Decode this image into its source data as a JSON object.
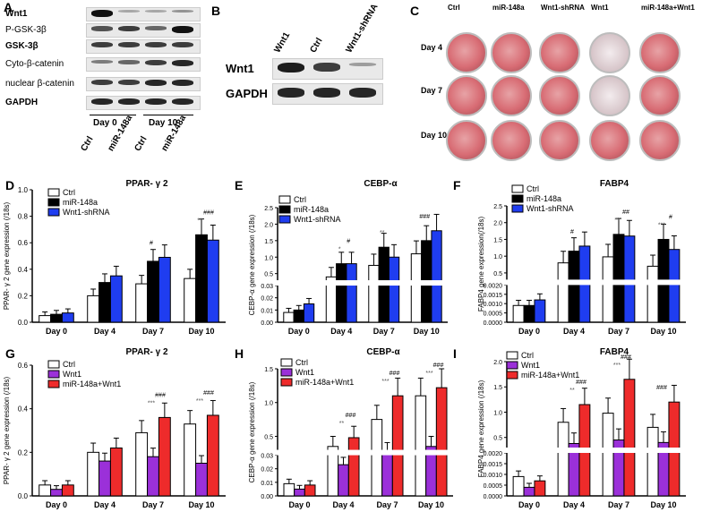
{
  "panels": {
    "A": {
      "letter": "A",
      "rows": [
        "Wnt1",
        "P-GSK-3β",
        "GSK-3β",
        "Cyto-β-catenin",
        "nuclear β-catenin",
        "GAPDH"
      ],
      "days": [
        "Day 0",
        "Day 10"
      ],
      "lanes": [
        "Ctrl",
        "miR-148a",
        "Ctrl",
        "miR-148a"
      ]
    },
    "B": {
      "letter": "B",
      "rows": [
        "Wnt1",
        "GAPDH"
      ],
      "lanes": [
        "Wnt1",
        "Ctrl",
        "Wnt1-shRNA"
      ]
    },
    "C": {
      "letter": "C",
      "columns": [
        "Ctrl",
        "miR-148a",
        "Wnt1-shRNA",
        "Wnt1",
        "miR-148a+Wnt1"
      ],
      "rows": [
        "Day 4",
        "Day 7",
        "Day 10"
      ]
    }
  },
  "colors": {
    "ctrl": "#ffffff",
    "mir": "#000000",
    "shrna": "#1f3df0",
    "wnt1": "#9b30d9",
    "combo": "#ee2b2b"
  },
  "chart_data": [
    {
      "panel": "D",
      "type": "bar",
      "title": "PPAR- γ 2",
      "ylabel": "PPAR- γ 2 gene expression (/18s)",
      "categories": [
        "Day 0",
        "Day 4",
        "Day 7",
        "Day 10"
      ],
      "ylim": [
        0,
        1.0
      ],
      "yticks": [
        "0.0",
        "0.2",
        "0.4",
        "0.6",
        "0.8",
        "1.0"
      ],
      "series": [
        {
          "name": "Ctrl",
          "values": [
            0.05,
            0.2,
            0.29,
            0.33
          ]
        },
        {
          "name": "miR-148a",
          "values": [
            0.06,
            0.3,
            0.46,
            0.66
          ]
        },
        {
          "name": "Wnt1-shRNA",
          "values": [
            0.07,
            0.35,
            0.49,
            0.62
          ]
        }
      ],
      "annotations": [
        {
          "cat": 3,
          "text": "**"
        },
        {
          "cat": 3,
          "text": "###"
        },
        {
          "cat": 2,
          "text": "#"
        }
      ]
    },
    {
      "panel": "E",
      "type": "bar",
      "title": "CEBP-α",
      "ylabel": "CEBP-α gene expression (/18s)",
      "categories": [
        "Day 0",
        "Day 4",
        "Day 7",
        "Day 10"
      ],
      "yticks_upper": [
        "0.5",
        "1.0",
        "1.5",
        "2.0",
        "2.5"
      ],
      "yticks_lower": [
        "0.00",
        "0.01",
        "0.02",
        "0.03"
      ],
      "series": [
        {
          "name": "Ctrl",
          "values": [
            0.008,
            0.4,
            0.75,
            1.1
          ]
        },
        {
          "name": "miR-148a",
          "values": [
            0.01,
            0.8,
            1.3,
            1.5
          ]
        },
        {
          "name": "Wnt1-shRNA",
          "values": [
            0.015,
            0.8,
            1.0,
            1.8
          ]
        }
      ],
      "annotations": [
        {
          "cat": 1,
          "text": "*"
        },
        {
          "cat": 1,
          "text": "#"
        },
        {
          "cat": 2,
          "text": "**"
        },
        {
          "cat": 3,
          "text": "###"
        }
      ]
    },
    {
      "panel": "F",
      "type": "bar",
      "title": "FABP4",
      "ylabel": "FABP4 gene expression(/18s)",
      "categories": [
        "Day 0",
        "Day 4",
        "Day 7",
        "Day 10"
      ],
      "yticks_upper": [
        "0.5",
        "1.0",
        "1.5",
        "2.0",
        "2.5"
      ],
      "yticks_lower": [
        "0.0000",
        "0.0005",
        "0.0010",
        "0.0015",
        "0.0020"
      ],
      "series": [
        {
          "name": "Ctrl",
          "values": [
            0.0009,
            0.8,
            0.98,
            0.7
          ]
        },
        {
          "name": "miR-148a",
          "values": [
            0.0009,
            1.15,
            1.65,
            1.5
          ]
        },
        {
          "name": "Wnt1-shRNA",
          "values": [
            0.0012,
            1.3,
            1.6,
            1.2
          ]
        }
      ],
      "annotations": [
        {
          "cat": 1,
          "text": "#"
        },
        {
          "cat": 2,
          "text": "**"
        },
        {
          "cat": 2,
          "text": "##"
        },
        {
          "cat": 3,
          "text": "***"
        },
        {
          "cat": 3,
          "text": "#"
        }
      ]
    },
    {
      "panel": "G",
      "type": "bar",
      "title": "PPAR- γ 2",
      "ylabel": "PPAR- γ 2 gene expression (/18s)",
      "categories": [
        "Day 0",
        "Day 4",
        "Day 7",
        "Day 10"
      ],
      "ylim": [
        0,
        0.6
      ],
      "yticks": [
        "0.0",
        "0.2",
        "0.4",
        "0.6"
      ],
      "series": [
        {
          "name": "Ctrl",
          "values": [
            0.05,
            0.2,
            0.29,
            0.33
          ]
        },
        {
          "name": "Wnt1",
          "values": [
            0.03,
            0.16,
            0.18,
            0.15
          ]
        },
        {
          "name": "miR-148a+Wnt1",
          "values": [
            0.05,
            0.22,
            0.36,
            0.37
          ]
        }
      ],
      "annotations": [
        {
          "cat": 2,
          "text": "***"
        },
        {
          "cat": 2,
          "text": "###"
        },
        {
          "cat": 3,
          "text": "***"
        },
        {
          "cat": 3,
          "text": "###"
        }
      ]
    },
    {
      "panel": "H",
      "type": "bar",
      "title": "CEBP-α",
      "ylabel": "CEBP-α gene expression (/18s)",
      "categories": [
        "Day 0",
        "Day 4",
        "Day 7",
        "Day 10"
      ],
      "yticks_upper": [
        "0.5",
        "1.0",
        "1.5"
      ],
      "yticks_lower": [
        "0.00",
        "0.01",
        "0.02",
        "0.03"
      ],
      "series": [
        {
          "name": "Ctrl",
          "values": [
            0.009,
            0.35,
            0.75,
            1.1
          ]
        },
        {
          "name": "Wnt1",
          "values": [
            0.005,
            0.08,
            0.27,
            0.35
          ]
        },
        {
          "name": "miR-148a+Wnt1",
          "values": [
            0.008,
            0.48,
            1.1,
            1.22
          ]
        }
      ],
      "annotations": [
        {
          "cat": 1,
          "text": "**"
        },
        {
          "cat": 1,
          "text": "###"
        },
        {
          "cat": 2,
          "text": "***"
        },
        {
          "cat": 2,
          "text": "###"
        },
        {
          "cat": 3,
          "text": "***"
        },
        {
          "cat": 3,
          "text": "###"
        }
      ]
    },
    {
      "panel": "I",
      "type": "bar",
      "title": "FABP4",
      "ylabel": "FABP4 gene expression (/18s)",
      "categories": [
        "Day 0",
        "Day 4",
        "Day 7",
        "Day 10"
      ],
      "yticks_upper": [
        "0.5",
        "1.0",
        "1.5",
        "2.0"
      ],
      "yticks_lower": [
        "0.0000",
        "0.0005",
        "0.0010",
        "0.0015",
        "0.0020"
      ],
      "series": [
        {
          "name": "Ctrl",
          "values": [
            0.0009,
            0.8,
            0.98,
            0.7
          ]
        },
        {
          "name": "Wnt1",
          "values": [
            0.0004,
            0.38,
            0.45,
            0.4
          ]
        },
        {
          "name": "miR-148a+Wnt1",
          "values": [
            0.0007,
            1.15,
            1.65,
            1.2
          ]
        }
      ],
      "annotations": [
        {
          "cat": 1,
          "text": "**"
        },
        {
          "cat": 1,
          "text": "###"
        },
        {
          "cat": 2,
          "text": "***"
        },
        {
          "cat": 2,
          "text": "###"
        },
        {
          "cat": 3,
          "text": "###"
        }
      ]
    }
  ]
}
